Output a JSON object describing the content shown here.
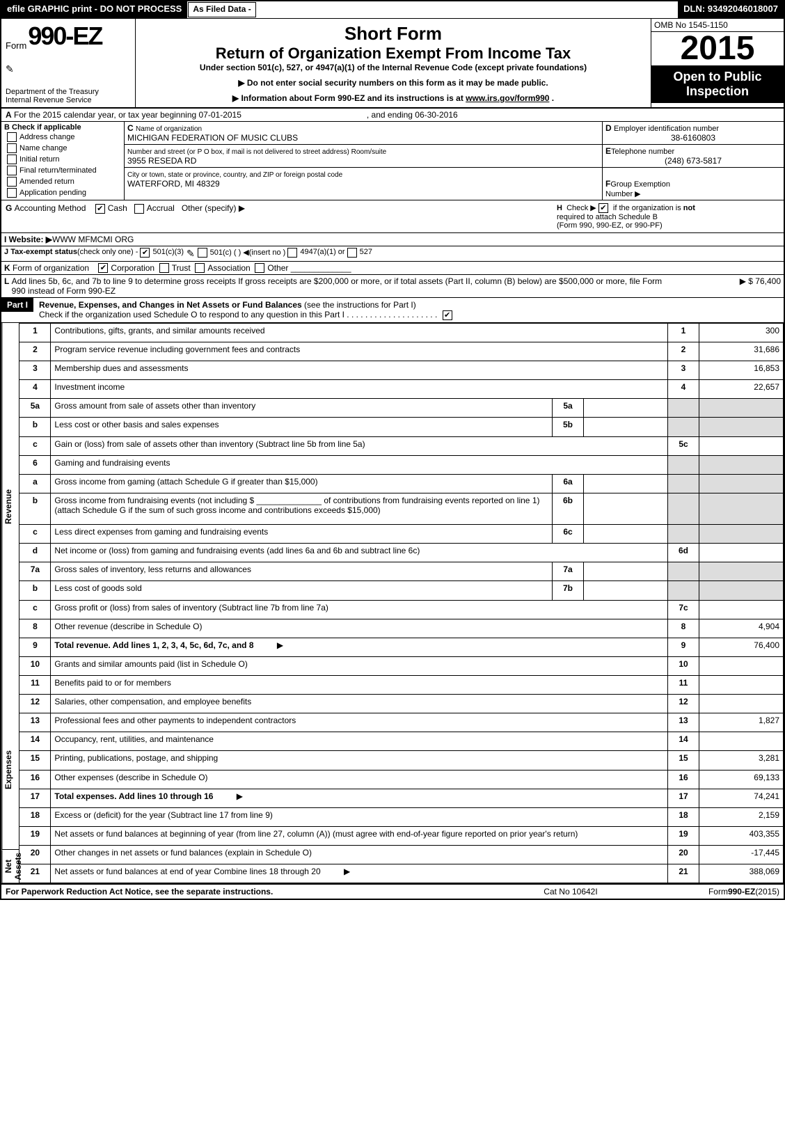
{
  "topbar": {
    "left": "efile GRAPHIC print - DO NOT PROCESS",
    "mid": "As Filed Data -",
    "right": "DLN: 93492046018007"
  },
  "header": {
    "form_word": "Form",
    "form_num": "990-EZ",
    "dept": "Department of the Treasury\nInternal Revenue Service",
    "short": "Short Form",
    "return": "Return of Organization Exempt From Income Tax",
    "under": "Under section 501(c), 527, or 4947(a)(1) of the Internal Revenue Code (except private foundations)",
    "arrow1": "▶ Do not enter social security numbers on this form as it may be made public.",
    "arrow2_pre": "▶ Information about Form 990-EZ and its instructions is at ",
    "arrow2_link": "www.irs.gov/form990",
    "arrow2_post": ".",
    "omb": "OMB No 1545-1150",
    "year": "2015",
    "open": "Open to Public\nInspection"
  },
  "line_a": "For the 2015 calendar year, or tax year beginning 07-01-2015",
  "line_a_end": ", and ending 06-30-2016",
  "box_b": {
    "title": "Check if applicable",
    "items": [
      "Address change",
      "Name change",
      "Initial return",
      "Final return/terminated",
      "Amended return",
      "Application pending"
    ]
  },
  "box_c": {
    "label_name": "Name of organization",
    "name": "MICHIGAN FEDERATION OF MUSIC CLUBS",
    "label_street": "Number and street (or P O box, if mail is not delivered to street address) Room/suite",
    "street": "3955 RESEDA RD",
    "label_city": "City or town, state or province, country, and ZIP or foreign postal code",
    "city": "WATERFORD, MI  48329"
  },
  "box_d": {
    "label": "Employer identification number",
    "val": "38-6160803"
  },
  "box_e": {
    "label": "Telephone number",
    "val": "(248) 673-5817"
  },
  "box_f": {
    "label": "Group Exemption\nNumber   ▶"
  },
  "line_g": {
    "label": "Accounting Method",
    "cash": "Cash",
    "accrual": "Accrual",
    "other": "Other (specify) ▶"
  },
  "line_h": {
    "text": "Check ▶",
    "text2": "if the organization is",
    "not": "not",
    "text3": "required to attach Schedule B\n(Form 990, 990-EZ, or 990-PF)"
  },
  "line_i": {
    "label": "Website: ▶",
    "val": "WWW MFMCMI ORG"
  },
  "line_j": {
    "label": "Tax-exempt status",
    "note": "(check only one) -",
    "a": "501(c)(3)",
    "b": "501(c) (   ) ◀(insert no )",
    "c": "4947(a)(1) or",
    "d": "527"
  },
  "line_k": {
    "label": "Form of organization",
    "a": "Corporation",
    "b": "Trust",
    "c": "Association",
    "d": "Other"
  },
  "line_l": {
    "text": "Add lines 5b, 6c, and 7b to line 9 to determine gross receipts  If gross receipts are $200,000 or more, or if total assets (Part II, column (B) below) are $500,000 or more, file Form 990 instead of Form 990-EZ",
    "amt": "▶ $ 76,400"
  },
  "part1": {
    "header": "Part I",
    "title": "Revenue, Expenses, and Changes in Net Assets or Fund Balances",
    "note": "(see the instructions for Part I)",
    "sub": "Check if the organization used Schedule O to respond to any question in this Part I  .  .  .  .  .  .  .  .  .  .  .  .  .  .  .  .  .  .  .  ."
  },
  "sections": {
    "revenue": "Revenue",
    "expenses": "Expenses",
    "netassets": "Net Assets"
  },
  "rows": [
    {
      "n": "1",
      "d": "Contributions, gifts, grants, and similar amounts received",
      "amt": "300"
    },
    {
      "n": "2",
      "d": "Program service revenue including government fees and contracts",
      "amt": "31,686"
    },
    {
      "n": "3",
      "d": "Membership dues and assessments",
      "amt": "16,853"
    },
    {
      "n": "4",
      "d": "Investment income",
      "amt": "22,657"
    },
    {
      "n": "5a",
      "d": "Gross amount from sale of assets other than inventory",
      "sub": "5a",
      "subamt": ""
    },
    {
      "n": "b",
      "d": "Less  cost or other basis and sales expenses",
      "sub": "5b",
      "subamt": ""
    },
    {
      "n": "c",
      "d": "Gain or (loss) from sale of assets other than inventory (Subtract line 5b from line 5a)",
      "rn": "5c",
      "amt": ""
    },
    {
      "n": "6",
      "d": "Gaming and fundraising events",
      "header": true
    },
    {
      "n": "a",
      "d": "Gross income from gaming (attach Schedule G if greater than $15,000)",
      "sub": "6a",
      "subamt": ""
    },
    {
      "n": "b",
      "d": "Gross income from fundraising events (not including $ ______________ of contributions from fundraising events reported on line 1) (attach Schedule G if the sum of such gross income and contributions exceeds $15,000)",
      "sub": "6b",
      "subamt": ""
    },
    {
      "n": "c",
      "d": "Less  direct expenses from gaming and fundraising events",
      "sub": "6c",
      "subamt": ""
    },
    {
      "n": "d",
      "d": "Net income or (loss) from gaming and fundraising events (add lines 6a and 6b and subtract line 6c)",
      "rn": "6d",
      "amt": ""
    },
    {
      "n": "7a",
      "d": "Gross sales of inventory, less returns and allowances",
      "sub": "7a",
      "subamt": ""
    },
    {
      "n": "b",
      "d": "Less  cost of goods sold",
      "sub": "7b",
      "subamt": ""
    },
    {
      "n": "c",
      "d": "Gross profit or (loss) from sales of inventory (Subtract line 7b from line 7a)",
      "rn": "7c",
      "amt": ""
    },
    {
      "n": "8",
      "d": "Other revenue (describe in Schedule O)",
      "amt": "4,904"
    },
    {
      "n": "9",
      "d": "Total revenue. Add lines 1, 2, 3, 4, 5c, 6d, 7c, and 8",
      "bold": true,
      "arrow": true,
      "amt": "76,400"
    },
    {
      "n": "10",
      "d": "Grants and similar amounts paid (list in Schedule O)",
      "amt": ""
    },
    {
      "n": "11",
      "d": "Benefits paid to or for members",
      "amt": ""
    },
    {
      "n": "12",
      "d": "Salaries, other compensation, and employee benefits",
      "amt": ""
    },
    {
      "n": "13",
      "d": "Professional fees and other payments to independent contractors",
      "amt": "1,827"
    },
    {
      "n": "14",
      "d": "Occupancy, rent, utilities, and maintenance",
      "amt": ""
    },
    {
      "n": "15",
      "d": "Printing, publications, postage, and shipping",
      "amt": "3,281"
    },
    {
      "n": "16",
      "d": "Other expenses (describe in Schedule O)",
      "amt": "69,133"
    },
    {
      "n": "17",
      "d": "Total expenses. Add lines 10 through 16",
      "bold": true,
      "arrow": true,
      "amt": "74,241"
    },
    {
      "n": "18",
      "d": "Excess or (deficit) for the year (Subtract line 17 from line 9)",
      "amt": "2,159"
    },
    {
      "n": "19",
      "d": "Net assets or fund balances at beginning of year (from line 27, column (A)) (must agree with end-of-year figure reported on prior year's return)",
      "amt": "403,355"
    },
    {
      "n": "20",
      "d": "Other changes in net assets or fund balances (explain in Schedule O)",
      "amt": "-17,445"
    },
    {
      "n": "21",
      "d": "Net assets or fund balances at end of year  Combine lines 18 through 20",
      "arrow": true,
      "amt": "388,069"
    }
  ],
  "footer": {
    "l": "For Paperwork Reduction Act Notice, see the separate instructions.",
    "m": "Cat No 10642I",
    "r": "Form 990-EZ (2015)"
  }
}
